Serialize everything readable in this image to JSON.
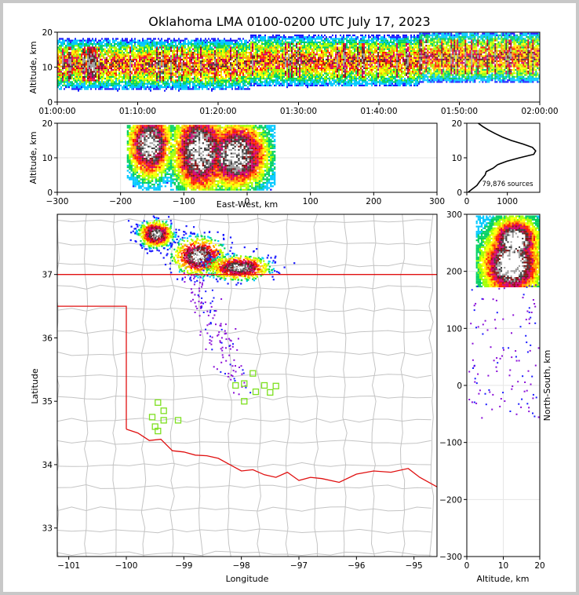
{
  "title": "Oklahoma LMA 0100-0200 UTC July 17, 2023",
  "source_count_label": "79,876 sources",
  "colors": {
    "map_border": "#c4c4c4",
    "state_line": "#e01010",
    "sensor": "#7ee020"
  },
  "chart_data": [
    {
      "name": "altitude-vs-time",
      "type": "heatmap",
      "xlabel": "",
      "ylabel": "Altitude, km",
      "x_ticks": [
        "01:00:00",
        "01:10:00",
        "01:20:00",
        "01:30:00",
        "01:40:00",
        "01:50:00",
        "02:00:00"
      ],
      "xlim": [
        "01:00:00",
        "02:00:00"
      ],
      "ylim": [
        0,
        20
      ],
      "y_ticks": [
        0,
        10,
        20
      ],
      "density_bands": [
        {
          "t_start_min": 0,
          "t_end_min": 24,
          "alt_min_km": 3,
          "alt_max_km": 20,
          "peak_alt_km": 11
        },
        {
          "t_start_min": 24,
          "t_end_min": 45,
          "alt_min_km": 4,
          "alt_max_km": 20,
          "peak_alt_km": 12
        },
        {
          "t_start_min": 45,
          "t_end_min": 60,
          "alt_min_km": 6,
          "alt_max_km": 20,
          "peak_alt_km": 13
        }
      ]
    },
    {
      "name": "altitude-vs-east-west",
      "type": "heatmap",
      "xlabel": "East-West, km",
      "ylabel": "Altitude, km",
      "xlim": [
        -300,
        300
      ],
      "x_ticks": [
        -300,
        -200,
        -100,
        0,
        100,
        200,
        300
      ],
      "ylim": [
        0,
        20
      ],
      "y_ticks": [
        0,
        10,
        20
      ],
      "cores": [
        {
          "x_km": -155,
          "alt_km": 14,
          "width_km": 14,
          "depth_km": 4
        },
        {
          "x_km": -75,
          "alt_km": 12,
          "width_km": 18,
          "depth_km": 5
        },
        {
          "x_km": -20,
          "alt_km": 11,
          "width_km": 22,
          "depth_km": 4
        }
      ]
    },
    {
      "name": "altitude-histogram",
      "type": "line",
      "xlabel": "",
      "ylabel": "",
      "xlim": [
        0,
        1800
      ],
      "x_ticks": [
        0,
        1000
      ],
      "ylim": [
        0,
        20
      ],
      "y_ticks": [
        0,
        10,
        20
      ],
      "alt_km": [
        0,
        2,
        3,
        4,
        5,
        6,
        7,
        8,
        9,
        10,
        11,
        12,
        13,
        14,
        15,
        16,
        17,
        18,
        19,
        20
      ],
      "sources": [
        30,
        250,
        310,
        380,
        450,
        480,
        650,
        760,
        990,
        1300,
        1650,
        1700,
        1620,
        1380,
        1100,
        880,
        700,
        540,
        400,
        280
      ]
    },
    {
      "name": "plan-view",
      "type": "scatter",
      "xlabel": "Longitude",
      "ylabel": "Latitude",
      "xlim": [
        -101.2,
        -94.6
      ],
      "ylim": [
        32.55,
        37.95
      ],
      "x_ticks": [
        -101,
        -100,
        -99,
        -98,
        -97,
        -96,
        -95
      ],
      "y_ticks": [
        33,
        34,
        35,
        36,
        37
      ],
      "storm_cores": [
        {
          "lon": -99.5,
          "lat": 37.65,
          "spread_lon": 0.14,
          "spread_lat": 0.1
        },
        {
          "lon": -98.75,
          "lat": 37.3,
          "spread_lon": 0.22,
          "spread_lat": 0.14
        },
        {
          "lon": -98.05,
          "lat": 37.12,
          "spread_lon": 0.25,
          "spread_lat": 0.09
        }
      ],
      "sensors": [
        {
          "lon": -99.45,
          "lat": 34.98
        },
        {
          "lon": -99.35,
          "lat": 34.85
        },
        {
          "lon": -99.55,
          "lat": 34.75
        },
        {
          "lon": -99.35,
          "lat": 34.7
        },
        {
          "lon": -99.1,
          "lat": 34.7
        },
        {
          "lon": -99.5,
          "lat": 34.6
        },
        {
          "lon": -99.45,
          "lat": 34.53
        },
        {
          "lon": -98.1,
          "lat": 35.25
        },
        {
          "lon": -97.95,
          "lat": 35.28
        },
        {
          "lon": -97.8,
          "lat": 35.44
        },
        {
          "lon": -97.75,
          "lat": 35.15
        },
        {
          "lon": -97.6,
          "lat": 35.25
        },
        {
          "lon": -97.5,
          "lat": 35.14
        },
        {
          "lon": -97.4,
          "lat": 35.24
        },
        {
          "lon": -97.95,
          "lat": 35.0
        }
      ]
    },
    {
      "name": "north-south-vs-altitude",
      "type": "heatmap",
      "xlabel": "Altitude, km",
      "ylabel": "North-South, km",
      "xlim": [
        0,
        20
      ],
      "x_ticks": [
        0,
        10,
        20
      ],
      "ylim": [
        -300,
        300
      ],
      "y_ticks": [
        -300,
        -200,
        -100,
        0,
        100,
        200,
        300
      ],
      "cores": [
        {
          "alt_km": 13,
          "y_km": 255,
          "alt_spread_km": 2,
          "y_spread_km": 12
        },
        {
          "alt_km": 12,
          "y_km": 215,
          "alt_spread_km": 2.5,
          "y_spread_km": 18
        }
      ]
    }
  ]
}
